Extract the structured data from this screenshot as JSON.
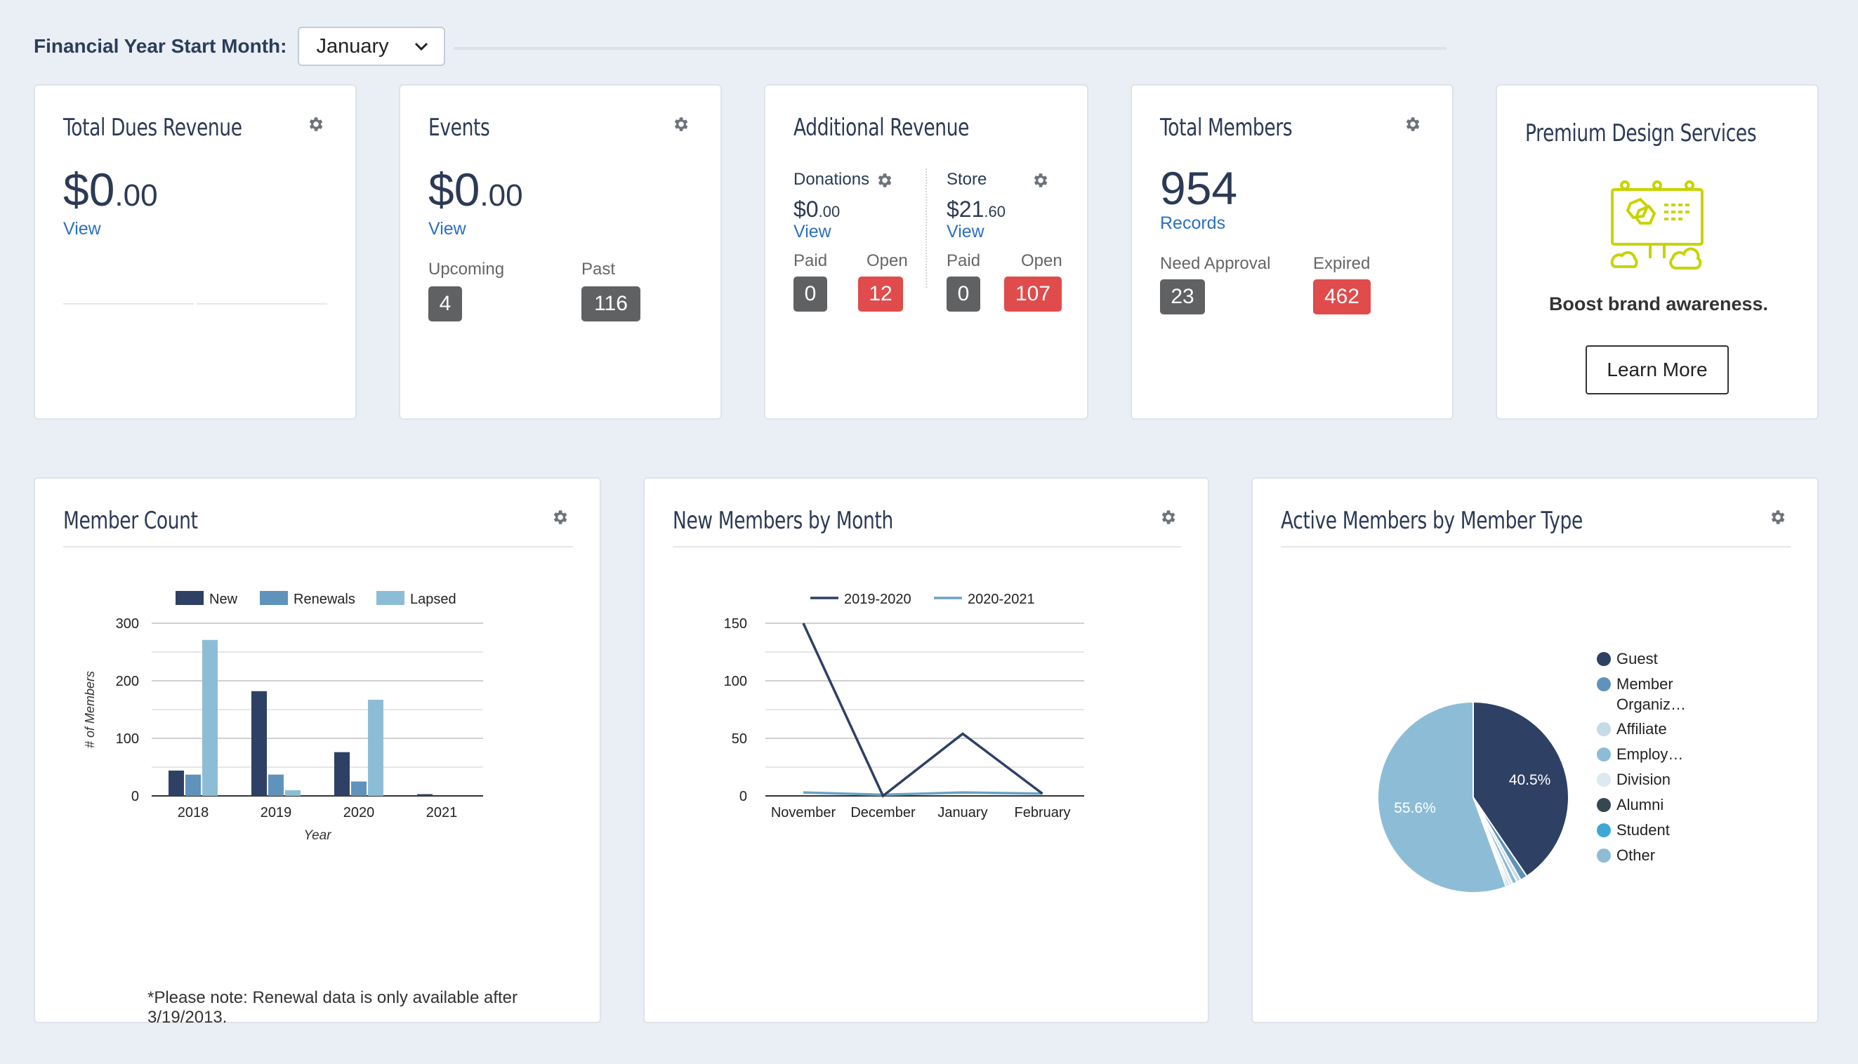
{
  "topbar": {
    "label": "Financial Year Start Month:",
    "selected_month": "January"
  },
  "cards": {
    "dues": {
      "title": "Total Dues Revenue",
      "amount_main": "$0",
      "amount_cents": ".00",
      "link": "View"
    },
    "events": {
      "title": "Events",
      "amount_main": "$0",
      "amount_cents": ".00",
      "link": "View",
      "upcoming_label": "Upcoming",
      "upcoming_value": "4",
      "past_label": "Past",
      "past_value": "116"
    },
    "additional": {
      "title": "Additional Revenue",
      "donations": {
        "label": "Donations",
        "amount_main": "$0",
        "amount_cents": ".00",
        "link": "View",
        "paid_label": "Paid",
        "paid_value": "0",
        "open_label": "Open",
        "open_value": "12"
      },
      "store": {
        "label": "Store",
        "amount_main": "$21",
        "amount_cents": ".60",
        "link": "View",
        "paid_label": "Paid",
        "paid_value": "0",
        "open_label": "Open",
        "open_value": "107"
      }
    },
    "members": {
      "title": "Total Members",
      "count": "954",
      "link": "Records",
      "approval_label": "Need Approval",
      "approval_value": "23",
      "expired_label": "Expired",
      "expired_value": "462"
    },
    "premium": {
      "title": "Premium Design Services",
      "tagline": "Boost brand awareness.",
      "button": "Learn More"
    }
  },
  "member_count": {
    "title": "Member Count",
    "note": "*Please note: Renewal data is only available after 3/19/2013."
  },
  "new_members": {
    "title": "New Members by Month"
  },
  "active_members": {
    "title": "Active Members by Member Type"
  },
  "colors": {
    "navy": "#2e4064",
    "mid_blue": "#5f93bb",
    "light_blue": "#8dbdd6",
    "red": "#e04b4b",
    "gray_badge": "#5f6163",
    "link": "#2b6fc2",
    "lime": "#c8d400"
  },
  "chart_data": [
    {
      "type": "bar",
      "categories": [
        "2018",
        "2019",
        "2020",
        "2021"
      ],
      "series": [
        {
          "name": "New",
          "values": [
            44,
            182,
            76,
            3
          ],
          "color": "#2e4064"
        },
        {
          "name": "Renewals",
          "values": [
            37,
            37,
            25,
            0
          ],
          "color": "#5f93bb"
        },
        {
          "name": "Lapsed",
          "values": [
            271,
            10,
            167,
            0
          ],
          "color": "#8dbdd6"
        }
      ],
      "xlabel": "Year",
      "ylabel": "# of Members",
      "ylim": [
        0,
        300
      ],
      "yticks": [
        0,
        100,
        200,
        300
      ],
      "legend": "top"
    },
    {
      "type": "line",
      "categories": [
        "November",
        "December",
        "January",
        "February"
      ],
      "series": [
        {
          "name": "2019-2020",
          "values": [
            150,
            0,
            54,
            2
          ],
          "color": "#2e4064"
        },
        {
          "name": "2020-2021",
          "values": [
            3,
            1,
            3,
            2
          ],
          "color": "#6aa3c2"
        }
      ],
      "ylim": [
        0,
        150
      ],
      "yticks": [
        0,
        50,
        100,
        150
      ],
      "legend": "top"
    },
    {
      "type": "pie",
      "slices": [
        {
          "label": "Guest",
          "value": 40.5,
          "display": "40.5%",
          "color": "#2e4064"
        },
        {
          "label": "Member Organiz…",
          "value": 1.2,
          "display": "",
          "color": "#5f93bb"
        },
        {
          "label": "Affiliate",
          "value": 0.7,
          "display": "",
          "color": "#c5dbe8"
        },
        {
          "label": "Employ…",
          "value": 0.8,
          "display": "",
          "color": "#8dbdd6"
        },
        {
          "label": "Division",
          "value": 0.6,
          "display": "",
          "color": "#dce9f1"
        },
        {
          "label": "Alumni",
          "value": 0.3,
          "display": "",
          "color": "#37474f"
        },
        {
          "label": "Student",
          "value": 0.3,
          "display": "",
          "color": "#3fa7d6"
        },
        {
          "label": "Other",
          "value": 55.6,
          "display": "55.6%",
          "color": "#8dbdd6"
        }
      ],
      "legend": "right"
    }
  ]
}
